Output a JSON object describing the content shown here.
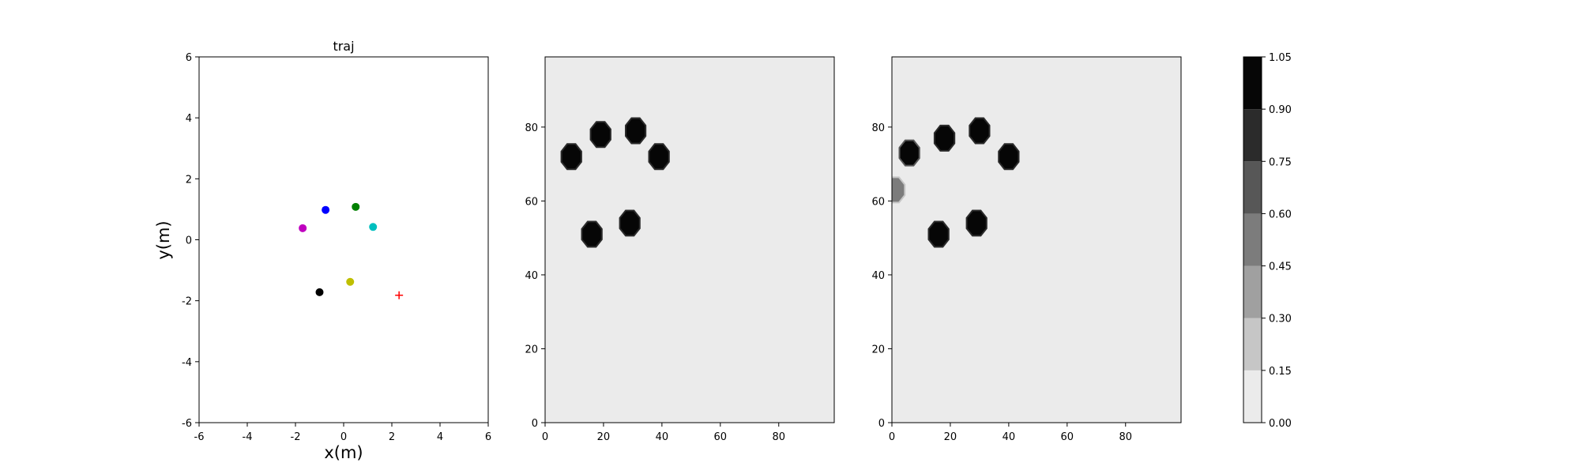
{
  "chart_data": [
    {
      "type": "scatter",
      "title": "traj",
      "xlabel": "x(m)",
      "ylabel": "y(m)",
      "xlim": [
        -6,
        6
      ],
      "ylim": [
        -6,
        6
      ],
      "xticks": [
        -6,
        -4,
        -2,
        0,
        2,
        4,
        6
      ],
      "yticks": [
        -6,
        -4,
        -2,
        0,
        2,
        4,
        6
      ],
      "grid": false,
      "points": [
        {
          "x": -0.75,
          "y": 0.98,
          "color": "#0000ff",
          "marker": "circle"
        },
        {
          "x": 0.5,
          "y": 1.08,
          "color": "#008000",
          "marker": "circle"
        },
        {
          "x": -1.7,
          "y": 0.38,
          "color": "#bf00bf",
          "marker": "circle"
        },
        {
          "x": 1.22,
          "y": 0.42,
          "color": "#00bfbf",
          "marker": "circle"
        },
        {
          "x": 0.27,
          "y": -1.38,
          "color": "#bfbf00",
          "marker": "circle"
        },
        {
          "x": -1.0,
          "y": -1.72,
          "color": "#000000",
          "marker": "circle"
        },
        {
          "x": 2.3,
          "y": -1.82,
          "color": "#ff0000",
          "marker": "plus"
        }
      ]
    },
    {
      "type": "heatmap",
      "title": "",
      "xlim": [
        0,
        99
      ],
      "ylim": [
        0,
        99
      ],
      "xticks": [
        0,
        20,
        40,
        60,
        80
      ],
      "yticks": [
        0,
        20,
        40,
        60,
        80
      ],
      "background_value": 0.05,
      "blobs": [
        {
          "x": 9,
          "y": 72,
          "value": 1.0
        },
        {
          "x": 19,
          "y": 78,
          "value": 1.0
        },
        {
          "x": 31,
          "y": 79,
          "value": 1.0
        },
        {
          "x": 39,
          "y": 72,
          "value": 1.0
        },
        {
          "x": 16,
          "y": 51,
          "value": 1.0
        },
        {
          "x": 29,
          "y": 54,
          "value": 1.0
        }
      ]
    },
    {
      "type": "heatmap",
      "title": "",
      "xlim": [
        0,
        99
      ],
      "ylim": [
        0,
        99
      ],
      "xticks": [
        0,
        20,
        40,
        60,
        80
      ],
      "yticks": [
        0,
        20,
        40,
        60,
        80
      ],
      "background_value": 0.05,
      "blobs": [
        {
          "x": 6,
          "y": 73,
          "value": 0.95
        },
        {
          "x": 18,
          "y": 77,
          "value": 1.0
        },
        {
          "x": 30,
          "y": 79,
          "value": 1.0
        },
        {
          "x": 40,
          "y": 72,
          "value": 1.0
        },
        {
          "x": 16,
          "y": 51,
          "value": 1.0
        },
        {
          "x": 29,
          "y": 54,
          "value": 1.0
        },
        {
          "x": 1,
          "y": 63,
          "value": 0.5
        }
      ]
    }
  ],
  "colorbar": {
    "ticks": [
      "0.00",
      "0.15",
      "0.30",
      "0.45",
      "0.60",
      "0.75",
      "0.90",
      "1.05"
    ],
    "levels": [
      {
        "from": 0.0,
        "to": 0.15,
        "color": "#ebebeb"
      },
      {
        "from": 0.15,
        "to": 0.3,
        "color": "#c6c6c6"
      },
      {
        "from": 0.3,
        "to": 0.45,
        "color": "#a0a0a0"
      },
      {
        "from": 0.45,
        "to": 0.6,
        "color": "#7c7c7c"
      },
      {
        "from": 0.6,
        "to": 0.75,
        "color": "#575757"
      },
      {
        "from": 0.75,
        "to": 0.9,
        "color": "#2b2b2b"
      },
      {
        "from": 0.9,
        "to": 1.05,
        "color": "#060606"
      }
    ]
  }
}
